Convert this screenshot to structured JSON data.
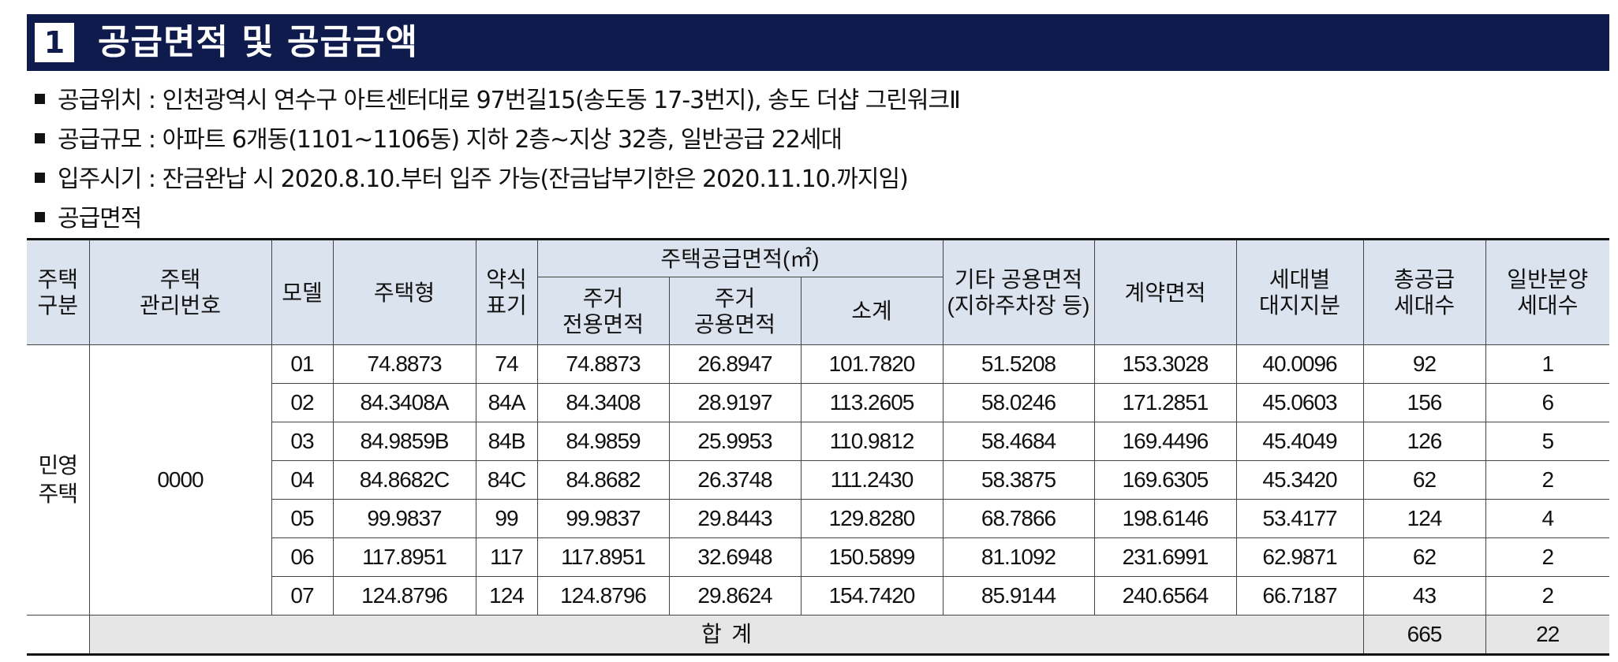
{
  "section": {
    "number": "1",
    "title": "공급면적 및 공급금액"
  },
  "bullets": [
    "공급위치 : 인천광역시 연수구 아트센터대로 97번길15(송도동 17-3번지), 송도 더샵 그린워크Ⅱ",
    "공급규모 : 아파트 6개동(1101~1106동) 지하 2층~지상 32층, 일반공급 22세대",
    "입주시기 : 잔금완납 시 2020.8.10.부터 입주 가능(잔금납부기한은 2020.11.10.까지임)",
    "공급면적"
  ],
  "table": {
    "headers": {
      "housing_type": "주택\n구분",
      "mgmt_no": "주택\n관리번호",
      "model": "모델",
      "house_type": "주택형",
      "abbr": "약식\n표기",
      "supply_area_group": "주택공급면적(㎡)",
      "exclusive_area": "주거\n전용면적",
      "common_area": "주거\n공용면적",
      "subtotal": "소계",
      "other_common": "기타 공용면적\n(지하주차장 등)",
      "contract_area": "계약면적",
      "land_share": "세대별\n대지지분",
      "total_units": "총공급\n세대수",
      "general_units": "일반분양\n세대수"
    },
    "category": "민영\n주택",
    "mgmt_number": "0000",
    "rows": [
      [
        "01",
        "74.8873",
        "74",
        "74.8873",
        "26.8947",
        "101.7820",
        "51.5208",
        "153.3028",
        "40.0096",
        "92",
        "1"
      ],
      [
        "02",
        "84.3408A",
        "84A",
        "84.3408",
        "28.9197",
        "113.2605",
        "58.0246",
        "171.2851",
        "45.0603",
        "156",
        "6"
      ],
      [
        "03",
        "84.9859B",
        "84B",
        "84.9859",
        "25.9953",
        "110.9812",
        "58.4684",
        "169.4496",
        "45.4049",
        "126",
        "5"
      ],
      [
        "04",
        "84.8682C",
        "84C",
        "84.8682",
        "26.3748",
        "111.2430",
        "58.3875",
        "169.6305",
        "45.3420",
        "62",
        "2"
      ],
      [
        "05",
        "99.9837",
        "99",
        "99.9837",
        "29.8443",
        "129.8280",
        "68.7866",
        "198.6146",
        "53.4177",
        "124",
        "4"
      ],
      [
        "06",
        "117.8951",
        "117",
        "117.8951",
        "32.6948",
        "150.5899",
        "81.1092",
        "231.6991",
        "62.9871",
        "62",
        "2"
      ],
      [
        "07",
        "124.8796",
        "124",
        "124.8796",
        "29.8624",
        "154.7420",
        "85.9144",
        "240.6564",
        "66.7187",
        "43",
        "2"
      ]
    ],
    "total": {
      "label": "합  계",
      "total_units": "665",
      "general_units": "22"
    }
  },
  "colors": {
    "title_bar": "#0f1b4c",
    "header_bg": "#dbe3ee",
    "sum_bg": "#e6e6e6"
  }
}
